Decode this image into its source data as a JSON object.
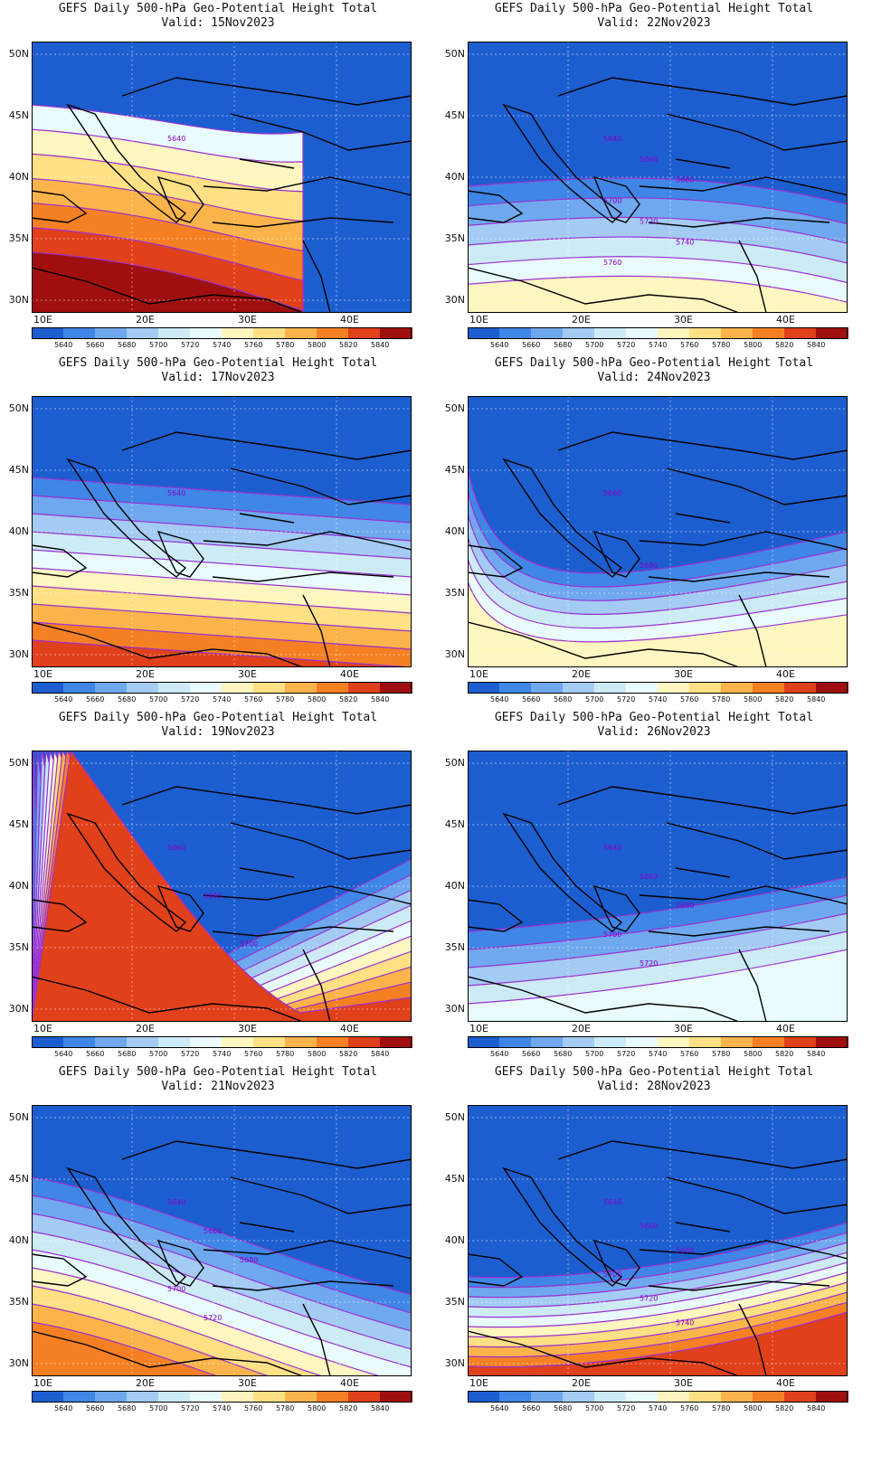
{
  "colorbar": {
    "levels": [
      "5640",
      "5660",
      "5680",
      "5700",
      "5720",
      "5740",
      "5760",
      "5780",
      "5800",
      "5820",
      "5840"
    ],
    "colors": [
      "#1c5ed0",
      "#3f86e6",
      "#6fa8ef",
      "#a3cbf4",
      "#cdebf7",
      "#e9fbfc",
      "#fff6c0",
      "#ffe084",
      "#fbb44b",
      "#f58024",
      "#e0401a",
      "#a00f0f"
    ]
  },
  "axes": {
    "lat_labels": [
      "50N",
      "45N",
      "40N",
      "35N",
      "30N"
    ],
    "lon_labels": [
      "10E",
      "20E",
      "30E",
      "40E"
    ]
  },
  "panels": [
    {
      "title": "GEFS Daily 500-hPa Geo-Potential Height Total",
      "valid": "Valid: 15Nov2023",
      "bands": [
        5,
        6,
        7,
        8,
        9,
        10,
        11
      ],
      "labels": [
        "5640"
      ]
    },
    {
      "title": "GEFS Daily 500-hPa Geo-Potential Height Total",
      "valid": "Valid: 22Nov2023",
      "bands": [
        1,
        2,
        3,
        4,
        5,
        6
      ],
      "labels": [
        "5640",
        "5660",
        "5680",
        "5700",
        "5720",
        "5740",
        "5760"
      ]
    },
    {
      "title": "GEFS Daily 500-hPa Geo-Potential Height Total",
      "valid": "Valid: 17Nov2023",
      "bands": [
        1,
        2,
        3,
        4,
        5,
        6,
        7,
        8,
        9,
        10
      ],
      "labels": [
        "5640"
      ]
    },
    {
      "title": "GEFS Daily 500-hPa Geo-Potential Height Total",
      "valid": "Valid: 24Nov2023",
      "bands": [
        1,
        2,
        3,
        4,
        5,
        6
      ],
      "labels": [
        "5660",
        "5680"
      ]
    },
    {
      "title": "GEFS Daily 500-hPa Geo-Potential Height Total",
      "valid": "Valid: 19Nov2023",
      "bands": [
        1,
        2,
        3,
        4,
        5,
        6,
        7,
        8,
        9,
        10
      ],
      "labels": [
        "5660",
        "5680",
        "5700"
      ]
    },
    {
      "title": "GEFS Daily 500-hPa Geo-Potential Height Total",
      "valid": "Valid: 26Nov2023",
      "bands": [
        1,
        2,
        3,
        4,
        5
      ],
      "labels": [
        "5640",
        "5660",
        "5680",
        "5700",
        "5720"
      ]
    },
    {
      "title": "GEFS Daily 500-hPa Geo-Potential Height Total",
      "valid": "Valid: 21Nov2023",
      "bands": [
        1,
        2,
        3,
        4,
        5,
        6,
        7,
        8,
        9
      ],
      "labels": [
        "5640",
        "5660",
        "5680",
        "5700",
        "5720"
      ]
    },
    {
      "title": "GEFS Daily 500-hPa Geo-Potential Height Total",
      "valid": "Valid: 28Nov2023",
      "bands": [
        1,
        2,
        3,
        4,
        5,
        6,
        7,
        8,
        9,
        10
      ],
      "labels": [
        "5640",
        "5660",
        "5680",
        "5700",
        "5720",
        "5740"
      ]
    }
  ]
}
